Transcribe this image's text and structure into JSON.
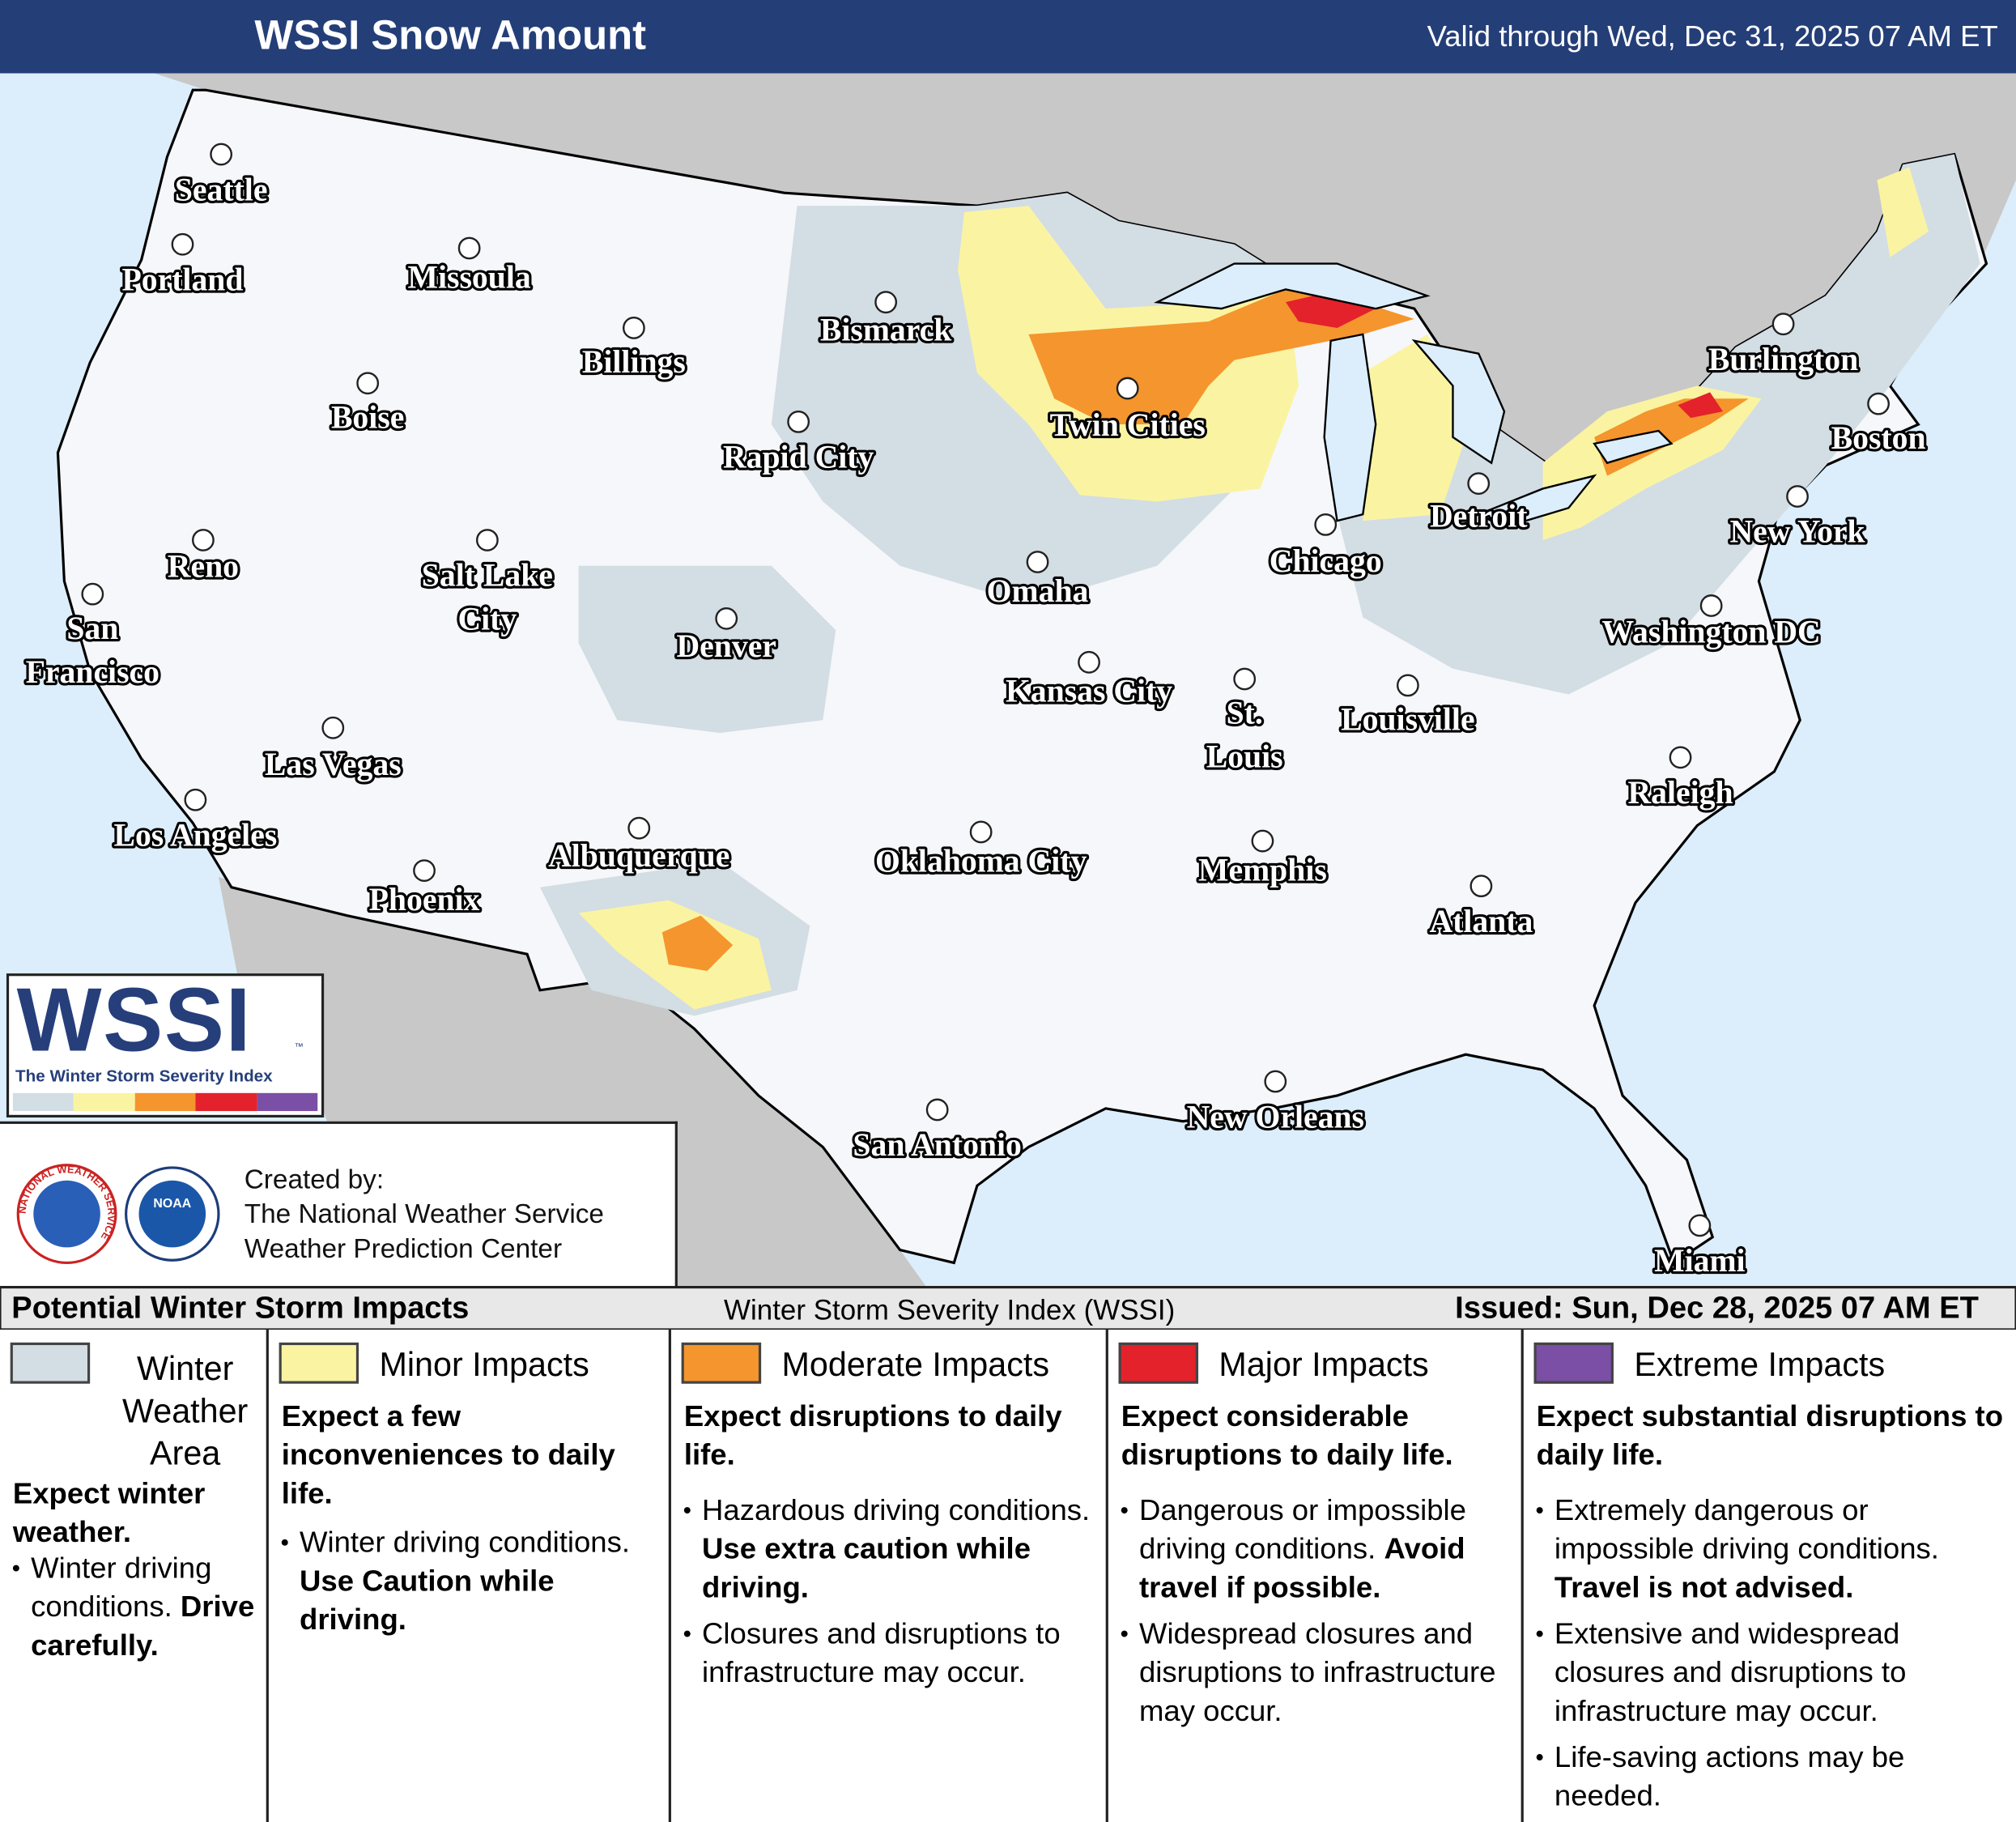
{
  "header": {
    "title": "WSSI Snow Amount",
    "valid": "Valid through Wed, Dec 31, 2025 07 AM ET"
  },
  "cities": [
    {
      "lines": [
        "Seattle"
      ]
    },
    {
      "lines": [
        "Portland"
      ]
    },
    {
      "lines": [
        "Missoula"
      ]
    },
    {
      "lines": [
        "Billings"
      ]
    },
    {
      "lines": [
        "Boise"
      ]
    },
    {
      "lines": [
        "Bismarck"
      ]
    },
    {
      "lines": [
        "Rapid City"
      ]
    },
    {
      "lines": [
        "Twin Cities"
      ]
    },
    {
      "lines": [
        "Reno"
      ]
    },
    {
      "lines": [
        "Salt Lake",
        "City"
      ]
    },
    {
      "lines": [
        "San",
        "Francisco"
      ]
    },
    {
      "lines": [
        "Denver"
      ]
    },
    {
      "lines": [
        "Omaha"
      ]
    },
    {
      "lines": [
        "Chicago"
      ]
    },
    {
      "lines": [
        "Detroit"
      ]
    },
    {
      "lines": [
        "Burlington"
      ]
    },
    {
      "lines": [
        "Boston"
      ]
    },
    {
      "lines": [
        "New York"
      ]
    },
    {
      "lines": [
        "Washington DC"
      ]
    },
    {
      "lines": [
        "Kansas City"
      ]
    },
    {
      "lines": [
        "St.",
        "Louis"
      ]
    },
    {
      "lines": [
        "Louisville"
      ]
    },
    {
      "lines": [
        "Las Vegas"
      ]
    },
    {
      "lines": [
        "Los Angeles"
      ]
    },
    {
      "lines": [
        "Albuquerque"
      ]
    },
    {
      "lines": [
        "Oklahoma City"
      ]
    },
    {
      "lines": [
        "Memphis"
      ]
    },
    {
      "lines": [
        "Raleigh"
      ]
    },
    {
      "lines": [
        "Phoenix"
      ]
    },
    {
      "lines": [
        "Atlanta"
      ]
    },
    {
      "lines": [
        "New Orleans"
      ]
    },
    {
      "lines": [
        "San Antonio"
      ]
    },
    {
      "lines": [
        "Miami"
      ]
    }
  ],
  "logo": {
    "word": "WSSI",
    "tm": "™",
    "subtitle": "The Winter Storm Severity Index",
    "seal": "NATIONAL WEATHER SERVICE",
    "noaa": "NOAA"
  },
  "credits": {
    "lines": [
      "Created by:",
      "The National Weather Service",
      "Weather Prediction Center"
    ]
  },
  "footer": {
    "left": "Potential Winter Storm Impacts",
    "center": "Winter Storm Severity Index (WSSI)",
    "right": "Issued: Sun, Dec 28, 2025 07 AM ET"
  },
  "legend": [
    {
      "name": "Winter Weather Area",
      "color": "#d3dde4",
      "headline": "Expect winter weather.",
      "bullets": [
        {
          "text": "Winter driving conditions.",
          "bold": "Drive carefully."
        }
      ]
    },
    {
      "name": "Minor Impacts",
      "color": "#faf4a2",
      "headline": "Expect a few inconveniences to daily life.",
      "bullets": [
        {
          "text": "Winter driving conditions.",
          "bold": "Use Caution while driving."
        }
      ]
    },
    {
      "name": "Moderate Impacts",
      "color": "#f5952d",
      "headline": "Expect disruptions to daily life.",
      "bullets": [
        {
          "text": "Hazardous driving conditions.",
          "bold": "Use extra caution while driving."
        },
        {
          "text": "Closures and disruptions to infrastructure may occur."
        }
      ]
    },
    {
      "name": "Major Impacts",
      "color": "#e3222b",
      "headline": "Expect considerable disruptions to daily life.",
      "bullets": [
        {
          "text": "Dangerous or impossible driving conditions.",
          "bold": "Avoid travel if possible."
        },
        {
          "text": "Widespread closures and disruptions to infrastructure may occur."
        }
      ]
    },
    {
      "name": "Extreme Impacts",
      "color": "#7a4fa5",
      "headline": "Expect substantial disruptions to daily life.",
      "bullets": [
        {
          "text": "Extremely dangerous or impossible driving conditions.",
          "bold": "Travel is not advised."
        },
        {
          "text": "Extensive and widespread closures and disruptions to infrastructure may occur."
        },
        {
          "text": "Life-saving actions may be needed."
        }
      ]
    }
  ]
}
